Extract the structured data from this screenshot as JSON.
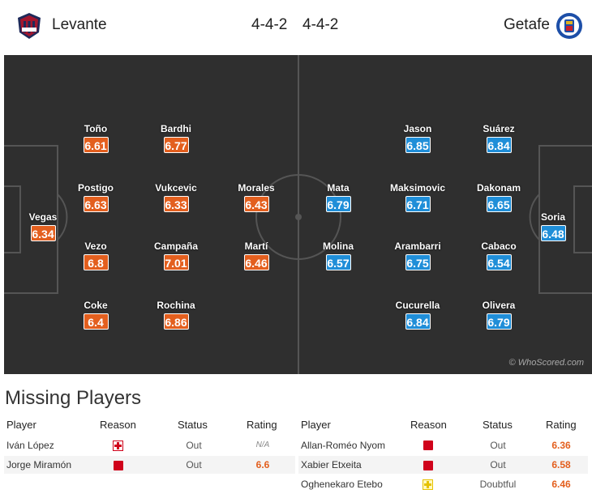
{
  "match": {
    "home": {
      "name": "Levante",
      "formation": "4-4-2",
      "accent": "#e35f1e"
    },
    "away": {
      "name": "Getafe",
      "formation": "4-4-2",
      "accent": "#1f8ed8"
    }
  },
  "lineups": {
    "home": [
      {
        "name": "Vegas",
        "rating": "6.34"
      },
      {
        "name": "Toño",
        "rating": "6.61"
      },
      {
        "name": "Postigo",
        "rating": "6.63"
      },
      {
        "name": "Vezo",
        "rating": "6.8"
      },
      {
        "name": "Coke",
        "rating": "6.4"
      },
      {
        "name": "Bardhi",
        "rating": "6.77"
      },
      {
        "name": "Vukcevic",
        "rating": "6.33"
      },
      {
        "name": "Campaña",
        "rating": "7.01"
      },
      {
        "name": "Rochina",
        "rating": "6.86"
      },
      {
        "name": "Morales",
        "rating": "6.43"
      },
      {
        "name": "Martí",
        "rating": "6.46"
      }
    ],
    "away": [
      {
        "name": "Mata",
        "rating": "6.79"
      },
      {
        "name": "Molina",
        "rating": "6.57"
      },
      {
        "name": "Jason",
        "rating": "6.85"
      },
      {
        "name": "Maksimovic",
        "rating": "6.71"
      },
      {
        "name": "Arambarri",
        "rating": "6.75"
      },
      {
        "name": "Cucurella",
        "rating": "6.84"
      },
      {
        "name": "Suárez",
        "rating": "6.84"
      },
      {
        "name": "Dakonam",
        "rating": "6.65"
      },
      {
        "name": "Cabaco",
        "rating": "6.54"
      },
      {
        "name": "Olivera",
        "rating": "6.79"
      },
      {
        "name": "Soria",
        "rating": "6.48"
      }
    ]
  },
  "watermark": "© WhoScored.com",
  "missing": {
    "title": "Missing Players",
    "headers": {
      "player": "Player",
      "reason": "Reason",
      "status": "Status",
      "rating": "Rating"
    },
    "home": [
      {
        "player": "Iván López",
        "reason_icon": "injury-icon",
        "status": "Out",
        "rating": "N/A"
      },
      {
        "player": "Jorge Miramón",
        "reason_icon": "red-card-icon",
        "status": "Out",
        "rating": "6.6"
      }
    ],
    "away": [
      {
        "player": "Allan-Roméo Nyom",
        "reason_icon": "red-card-icon",
        "status": "Out",
        "rating": "6.36"
      },
      {
        "player": "Xabier Etxeita",
        "reason_icon": "red-card-icon",
        "status": "Out",
        "rating": "6.58"
      },
      {
        "player": "Oghenekaro Etebo",
        "reason_icon": "doubtful-icon",
        "status": "Doubtful",
        "rating": "6.46"
      }
    ]
  }
}
